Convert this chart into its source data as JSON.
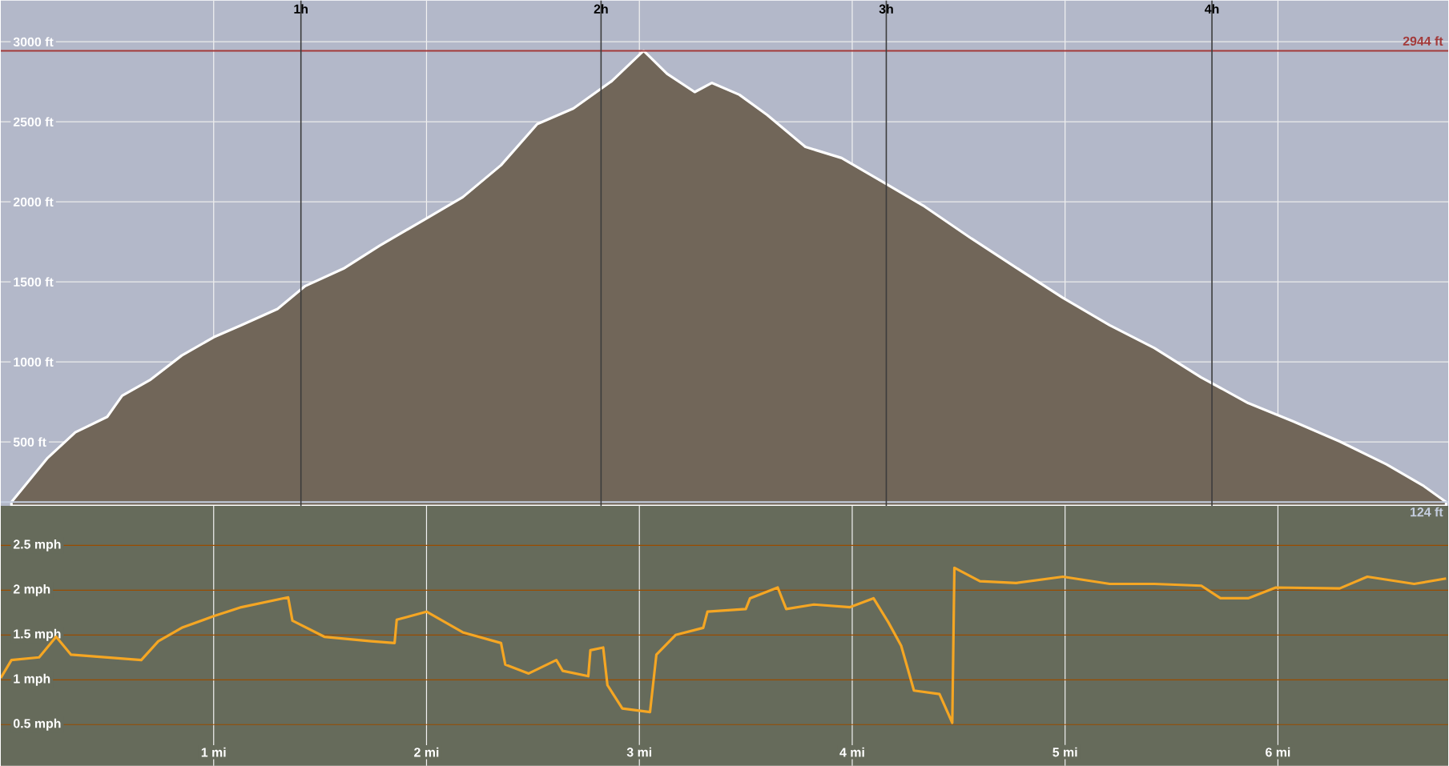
{
  "chart_data": [
    {
      "type": "area",
      "x": [
        0.05,
        0.22,
        0.35,
        0.5,
        0.57,
        0.7,
        0.85,
        1.0,
        1.13,
        1.3,
        1.43,
        1.61,
        1.78,
        2.0,
        2.17,
        2.35,
        2.52,
        2.69,
        2.87,
        3.02,
        3.13,
        3.26,
        3.34,
        3.47,
        3.6,
        3.78,
        3.95,
        4.12,
        4.34,
        4.56,
        4.77,
        4.99,
        5.21,
        5.42,
        5.64,
        5.86,
        6.07,
        6.29,
        6.51,
        6.68,
        6.79
      ],
      "series": [
        {
          "color": "#716659",
          "values": [
            124,
            400,
            560,
            657,
            789,
            886,
            1040,
            1154,
            1229,
            1331,
            1474,
            1583,
            1726,
            1897,
            2029,
            2229,
            2486,
            2583,
            2754,
            2944,
            2800,
            2686,
            2743,
            2669,
            2543,
            2343,
            2274,
            2143,
            1971,
            1771,
            1589,
            1400,
            1229,
            1086,
            903,
            743,
            629,
            503,
            360,
            229,
            124
          ]
        }
      ],
      "xlim": [
        0,
        6.8
      ],
      "ylim": [
        100,
        3257
      ],
      "xticks": [
        1,
        2,
        3,
        4,
        5,
        6
      ],
      "yticks": [
        {
          "value": 500,
          "label": "500 ft"
        },
        {
          "value": 1000,
          "label": "1000 ft"
        },
        {
          "value": 1500,
          "label": "1500 ft"
        },
        {
          "value": 2000,
          "label": "2000 ft"
        },
        {
          "value": 2500,
          "label": "2500 ft"
        },
        {
          "value": 3000,
          "label": "3000 ft"
        }
      ],
      "tick_labels": "y",
      "grid": true,
      "ref_lines": [
        {
          "axis": "y",
          "value": 2944,
          "label": "2944 ft",
          "color": "#a33a3a"
        },
        {
          "axis": "y",
          "value": 124,
          "label": "124 ft",
          "color": "#c5cee0"
        },
        {
          "axis": "x",
          "value": 1.41,
          "label": "1h",
          "color": "#3c3c3c"
        },
        {
          "axis": "x",
          "value": 2.82,
          "label": "2h",
          "color": "#3c3c3c"
        },
        {
          "axis": "x",
          "value": 4.16,
          "label": "3h",
          "color": "#3c3c3c"
        },
        {
          "axis": "x",
          "value": 5.69,
          "label": "4h",
          "color": "#3c3c3c"
        }
      ]
    },
    {
      "type": "line",
      "x": [
        0,
        0.05,
        0.18,
        0.26,
        0.33,
        0.66,
        0.74,
        0.85,
        1.0,
        1.13,
        1.35,
        1.37,
        1.52,
        1.74,
        1.85,
        1.86,
        2.0,
        2.17,
        2.35,
        2.37,
        2.48,
        2.61,
        2.64,
        2.76,
        2.77,
        2.83,
        2.85,
        2.92,
        3.05,
        3.08,
        3.17,
        3.3,
        3.32,
        3.5,
        3.52,
        3.65,
        3.69,
        3.82,
        3.99,
        4.1,
        4.17,
        4.23,
        4.29,
        4.41,
        4.47,
        4.48,
        4.6,
        4.77,
        4.99,
        5.21,
        5.42,
        5.64,
        5.73,
        5.86,
        5.99,
        6.29,
        6.42,
        6.64,
        6.79
      ],
      "series": [
        {
          "color": "#f5a623",
          "values": [
            1.02,
            1.22,
            1.25,
            1.48,
            1.28,
            1.22,
            1.43,
            1.58,
            1.71,
            1.81,
            1.92,
            1.66,
            1.48,
            1.43,
            1.41,
            1.67,
            1.76,
            1.53,
            1.41,
            1.17,
            1.07,
            1.22,
            1.1,
            1.04,
            1.33,
            1.36,
            0.94,
            0.68,
            0.64,
            1.28,
            1.5,
            1.58,
            1.76,
            1.79,
            1.91,
            2.03,
            1.79,
            1.84,
            1.81,
            1.91,
            1.64,
            1.38,
            0.88,
            0.84,
            0.52,
            2.25,
            2.1,
            2.08,
            2.15,
            2.07,
            2.07,
            2.05,
            1.91,
            1.91,
            2.03,
            2.02,
            2.15,
            2.07,
            2.13
          ]
        }
      ],
      "xlim": [
        0,
        6.8
      ],
      "ylim": [
        0.04,
        2.94
      ],
      "xticks": [
        {
          "value": 1,
          "label": "1 mi"
        },
        {
          "value": 2,
          "label": "2 mi"
        },
        {
          "value": 3,
          "label": "3 mi"
        },
        {
          "value": 4,
          "label": "4 mi"
        },
        {
          "value": 5,
          "label": "5 mi"
        },
        {
          "value": 6,
          "label": "6 mi"
        }
      ],
      "yticks": [
        {
          "value": 0.5,
          "label": "0.5 mph"
        },
        {
          "value": 1,
          "label": "1 mph"
        },
        {
          "value": 1.5,
          "label": "1.5 mph"
        },
        {
          "value": 2,
          "label": "2 mph"
        },
        {
          "value": 2.5,
          "label": "2.5 mph"
        }
      ],
      "grid": true
    }
  ]
}
